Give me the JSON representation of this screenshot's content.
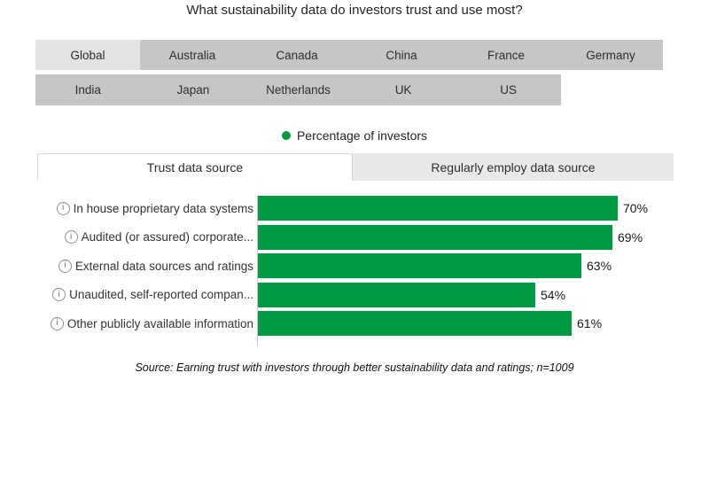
{
  "title": "What sustainability data do investors trust and use most?",
  "country_selector": {
    "row1": [
      {
        "label": "Global",
        "selected": true
      },
      {
        "label": "Australia",
        "selected": false
      },
      {
        "label": "Canada",
        "selected": false
      },
      {
        "label": "China",
        "selected": false
      },
      {
        "label": "France",
        "selected": false
      },
      {
        "label": "Germany",
        "selected": false
      }
    ],
    "row2": [
      {
        "label": "India",
        "selected": false
      },
      {
        "label": "Japan",
        "selected": false
      },
      {
        "label": "Netherlands",
        "selected": false
      },
      {
        "label": "UK",
        "selected": false
      },
      {
        "label": "US",
        "selected": false
      }
    ]
  },
  "legend": {
    "label": "Percentage of investors",
    "dot_color": "#009A44"
  },
  "tabs": [
    {
      "label": "Trust data source",
      "active": true
    },
    {
      "label": "Regularly employ data source",
      "active": false
    }
  ],
  "chart_data": {
    "type": "bar",
    "orientation": "horizontal",
    "title": "What sustainability data do investors trust and use most?",
    "series_name": "Percentage of investors",
    "categories": [
      "In house proprietary data systems",
      "Audited (or assured) corporate...",
      "External data sources and ratings",
      "Unaudited, self-reported compan...",
      "Other publicly available information"
    ],
    "values": [
      70,
      69,
      63,
      54,
      61
    ],
    "value_labels": [
      "70%",
      "69%",
      "63%",
      "54%",
      "61%"
    ],
    "unit": "%",
    "bar_color": "#009A44",
    "legend_position": "top",
    "grid": false
  },
  "source": "Source: Earning trust with investors through better sustainability data and ratings; n=1009",
  "icons": {
    "info_glyph": "i",
    "info_tooltip_present": true
  },
  "colors": {
    "bar_green": "#009A44",
    "country_cell_bg": "#c6c6c6",
    "country_cell_selected_bg": "#e3e3e3",
    "inactive_tab_bg": "#e9e9e9",
    "active_tab_border": "#d9d9d9",
    "axis_line": "#cccccc"
  }
}
